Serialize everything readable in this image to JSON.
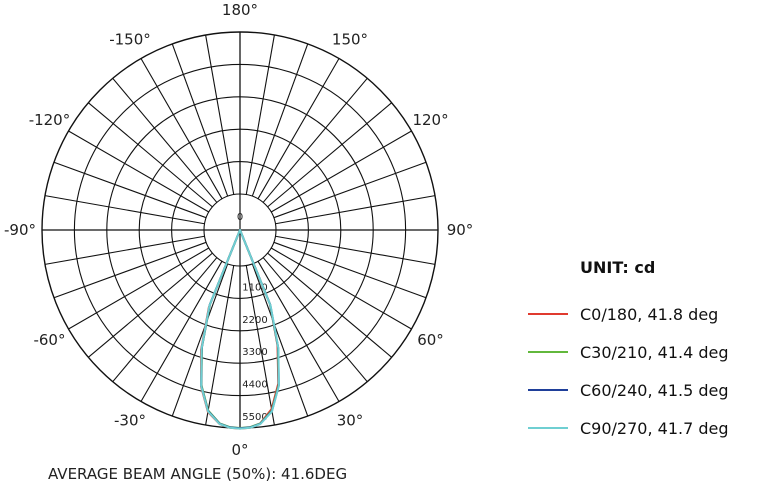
{
  "chart_data": {
    "type": "polar",
    "unit_label": "UNIT: cd",
    "caption": "AVERAGE BEAM ANGLE (50%): 41.6DEG",
    "angle_labels": [
      {
        "deg": 0,
        "text": "0°"
      },
      {
        "deg": 30,
        "text": "30°"
      },
      {
        "deg": -30,
        "text": "-30°"
      },
      {
        "deg": 60,
        "text": "60°"
      },
      {
        "deg": -60,
        "text": "-60°"
      },
      {
        "deg": 90,
        "text": "90°"
      },
      {
        "deg": -90,
        "text": "-90°"
      },
      {
        "deg": 120,
        "text": "120°"
      },
      {
        "deg": -120,
        "text": "-120°"
      },
      {
        "deg": 150,
        "text": "150°"
      },
      {
        "deg": -150,
        "text": "-150°"
      },
      {
        "deg": 180,
        "text": "180°"
      }
    ],
    "ring_ticks": [
      "0",
      "1100",
      "2200",
      "3300",
      "4400",
      "5500"
    ],
    "r_max": 5500,
    "angle_step_deg": 10,
    "series": [
      {
        "name": "C0/180, 41.8 deg",
        "color": "#e03a2f",
        "angles": [
          -26,
          -22,
          -18,
          -14,
          -10,
          -6,
          -3,
          0,
          3,
          6,
          10,
          14,
          18,
          22,
          26
        ],
        "values": [
          0,
          1600,
          3050,
          4250,
          5050,
          5400,
          5500,
          5520,
          5500,
          5380,
          4950,
          4150,
          2900,
          1500,
          0
        ]
      },
      {
        "name": "C30/210, 41.4 deg",
        "color": "#62b83c",
        "angles": [
          -26,
          -22,
          -18,
          -14,
          -10,
          -6,
          -3,
          0,
          3,
          6,
          10,
          14,
          18,
          22,
          26
        ],
        "values": [
          0,
          1500,
          2950,
          4200,
          5000,
          5380,
          5480,
          5500,
          5480,
          5380,
          5000,
          4200,
          2950,
          1500,
          0
        ]
      },
      {
        "name": "C60/240, 41.5 deg",
        "color": "#1f3f9a",
        "angles": [
          -26,
          -22,
          -18,
          -14,
          -10,
          -6,
          -3,
          0,
          3,
          6,
          10,
          14,
          18,
          22,
          26
        ],
        "values": [
          0,
          1520,
          2980,
          4220,
          5020,
          5390,
          5490,
          5510,
          5490,
          5390,
          5020,
          4220,
          2980,
          1520,
          0
        ]
      },
      {
        "name": "C90/270, 41.7 deg",
        "color": "#6fcfd2",
        "angles": [
          -26,
          -22,
          -18,
          -14,
          -10,
          -6,
          -3,
          0,
          3,
          6,
          10,
          14,
          18,
          22,
          26
        ],
        "values": [
          0,
          1550,
          3000,
          4230,
          5030,
          5400,
          5500,
          5520,
          5500,
          5400,
          5030,
          4230,
          3000,
          1550,
          0
        ]
      }
    ]
  }
}
